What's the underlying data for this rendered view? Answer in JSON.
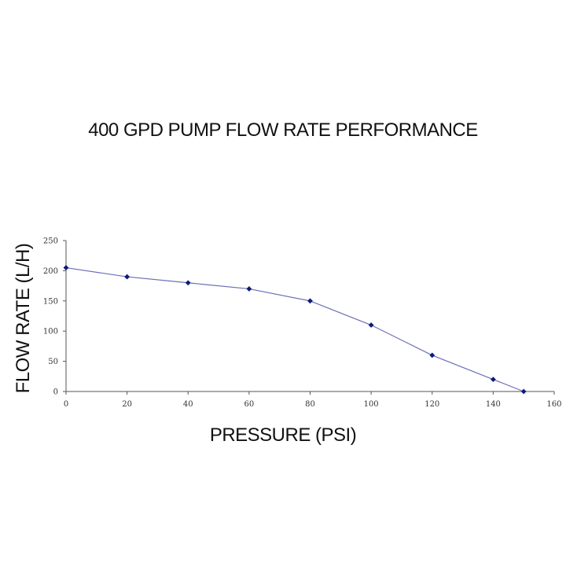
{
  "chart_data": {
    "type": "line",
    "title": "400 GPD PUMP FLOW RATE PERFORMANCE",
    "xlabel": "PRESSURE (PSI)",
    "ylabel": "FLOW RATE (L/H)",
    "xlim": [
      0,
      160
    ],
    "ylim": [
      0,
      250
    ],
    "xticks": [
      0,
      20,
      40,
      60,
      80,
      100,
      120,
      140,
      160
    ],
    "yticks": [
      0,
      50,
      100,
      150,
      200,
      250
    ],
    "grid": false,
    "series": [
      {
        "x": [
          0,
          20,
          40,
          60,
          80,
          100,
          120,
          140,
          150
        ],
        "y": [
          205,
          190,
          180,
          170,
          150,
          110,
          60,
          20,
          0
        ],
        "line_color": "#6b6fb8",
        "marker_color": "#0d1a7a",
        "marker": "diamond"
      }
    ]
  }
}
